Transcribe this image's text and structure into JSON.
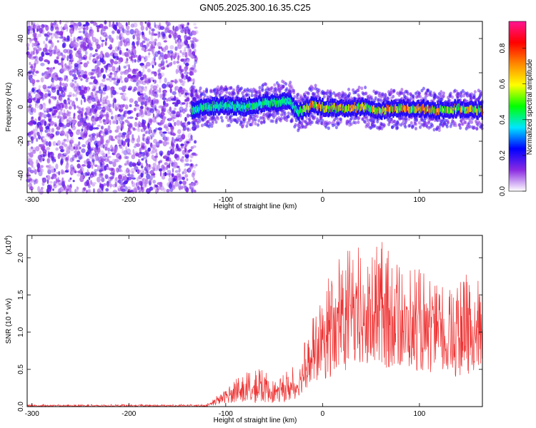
{
  "title": "GN05.2025.300.16.35.C25",
  "chart_data": [
    {
      "type": "heatmap",
      "xlabel": "Height of straight line (km)",
      "ylabel": "Frequency (Hz)",
      "xlim": [
        -305,
        165
      ],
      "ylim": [
        -50,
        50
      ],
      "x_ticks": [
        -300,
        -200,
        -100,
        0,
        100
      ],
      "y_ticks": [
        -40,
        -20,
        0,
        20,
        40
      ],
      "colorbar": {
        "label": "Normalized spectral amplitude",
        "range": [
          0,
          0.95
        ],
        "ticks": [
          "0.0",
          "0.2",
          "0.4",
          "0.6",
          "0.8"
        ],
        "tick_values": [
          0,
          0.2,
          0.4,
          0.6,
          0.8
        ],
        "colors": [
          "#ffffff",
          "#8a2be2",
          "#0000ff",
          "#00e5ff",
          "#00ff00",
          "#ffff00",
          "#ff8800",
          "#ff0000",
          "#ff1493"
        ]
      },
      "regions": [
        {
          "name": "noise",
          "x_range": [
            -305,
            -130
          ],
          "freq_range": [
            -50,
            50
          ]
        },
        {
          "name": "signal-band",
          "x_range": [
            -135,
            165
          ],
          "center_freq": 0
        }
      ],
      "ridge": {
        "x": [
          -135,
          -120,
          -100,
          -80,
          -60,
          -45,
          -35,
          -25,
          -10,
          0,
          20,
          40,
          60,
          80,
          100,
          120,
          140,
          165
        ],
        "freq": [
          -2,
          0,
          1,
          0,
          2,
          3,
          4,
          -3,
          1,
          0,
          -1,
          0,
          -2,
          -1,
          -1,
          -2,
          -1,
          -2
        ]
      }
    },
    {
      "type": "line",
      "xlabel": "Height of straight line (km)",
      "ylabel": "SNR (10 * v/v)",
      "y_multiplier": "(x10",
      "y_multiplier_exp": "4",
      "y_multiplier_close": ")",
      "xlim": [
        -305,
        165
      ],
      "ylim": [
        0,
        2.3
      ],
      "x_ticks": [
        -300,
        -200,
        -100,
        0,
        100
      ],
      "y_ticks": [
        0.0,
        0.5,
        1.0,
        1.5,
        2.0
      ],
      "y_tick_labels": [
        "0.0",
        "0.5",
        "1.0",
        "1.5",
        "2.0"
      ],
      "color": "#ee3333",
      "envelope": {
        "x": [
          -305,
          -120,
          -110,
          -100,
          -80,
          -60,
          -45,
          -35,
          -28,
          -20,
          -10,
          0,
          15,
          30,
          50,
          70,
          90,
          110,
          130,
          150,
          165
        ],
        "low": [
          0,
          0,
          0.02,
          0.05,
          0.05,
          0.05,
          0.06,
          0.06,
          0.1,
          0.2,
          0.3,
          0.35,
          0.4,
          0.5,
          0.5,
          0.5,
          0.5,
          0.45,
          0.4,
          0.4,
          0.4
        ],
        "high": [
          0.03,
          0.03,
          0.15,
          0.3,
          0.45,
          0.55,
          0.35,
          0.6,
          0.5,
          0.9,
          1.2,
          1.6,
          2.05,
          2.2,
          2.1,
          2.3,
          1.9,
          1.8,
          1.6,
          1.8,
          1.65
        ]
      }
    }
  ]
}
